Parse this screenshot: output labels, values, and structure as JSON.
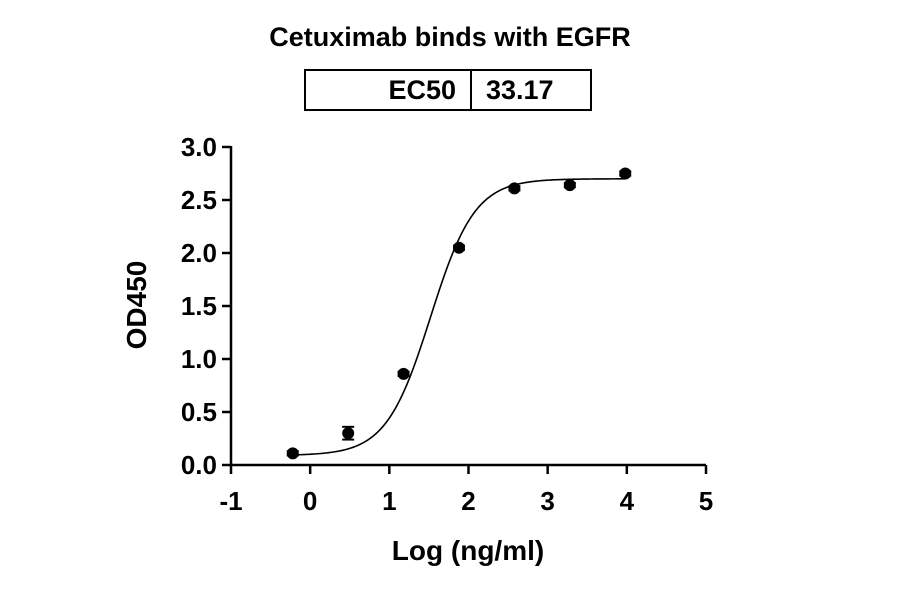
{
  "chart_data": {
    "type": "scatter",
    "title": "Cetuximab binds with EGFR",
    "ec50_table": {
      "label": "EC50",
      "value": "33.17"
    },
    "xlabel": "Log (ng/ml)",
    "ylabel": "OD450",
    "xlim": [
      -1,
      5
    ],
    "ylim": [
      0,
      3.0
    ],
    "x_ticks": [
      "-1",
      "0",
      "1",
      "2",
      "3",
      "4",
      "5"
    ],
    "y_ticks": [
      "0.0",
      "0.5",
      "1.0",
      "1.5",
      "2.0",
      "2.5",
      "3.0"
    ],
    "grid": false,
    "points": [
      {
        "x": -0.22,
        "y": 0.11,
        "err": 0.02
      },
      {
        "x": 0.48,
        "y": 0.3,
        "err": 0.06
      },
      {
        "x": 1.18,
        "y": 0.86,
        "err": 0.02
      },
      {
        "x": 1.88,
        "y": 2.05,
        "err": 0.02
      },
      {
        "x": 2.58,
        "y": 2.61,
        "err": 0.02
      },
      {
        "x": 3.28,
        "y": 2.64,
        "err": 0.02
      },
      {
        "x": 3.98,
        "y": 2.75,
        "err": 0.02
      }
    ],
    "fit": {
      "model": "4PL",
      "bottom": 0.09,
      "top": 2.7,
      "log_ec50": 1.52,
      "hill": 1.55,
      "x_range": [
        -0.22,
        3.98
      ]
    },
    "colors": {
      "points": "#000000",
      "line": "#000000"
    }
  }
}
